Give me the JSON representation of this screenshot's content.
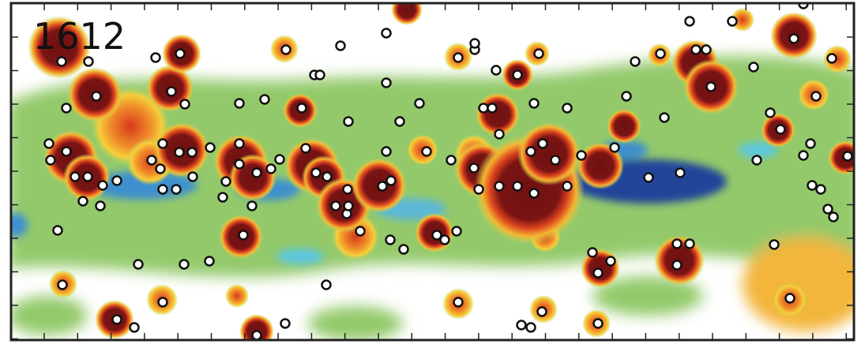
{
  "panel": {
    "label": "1612"
  }
}
